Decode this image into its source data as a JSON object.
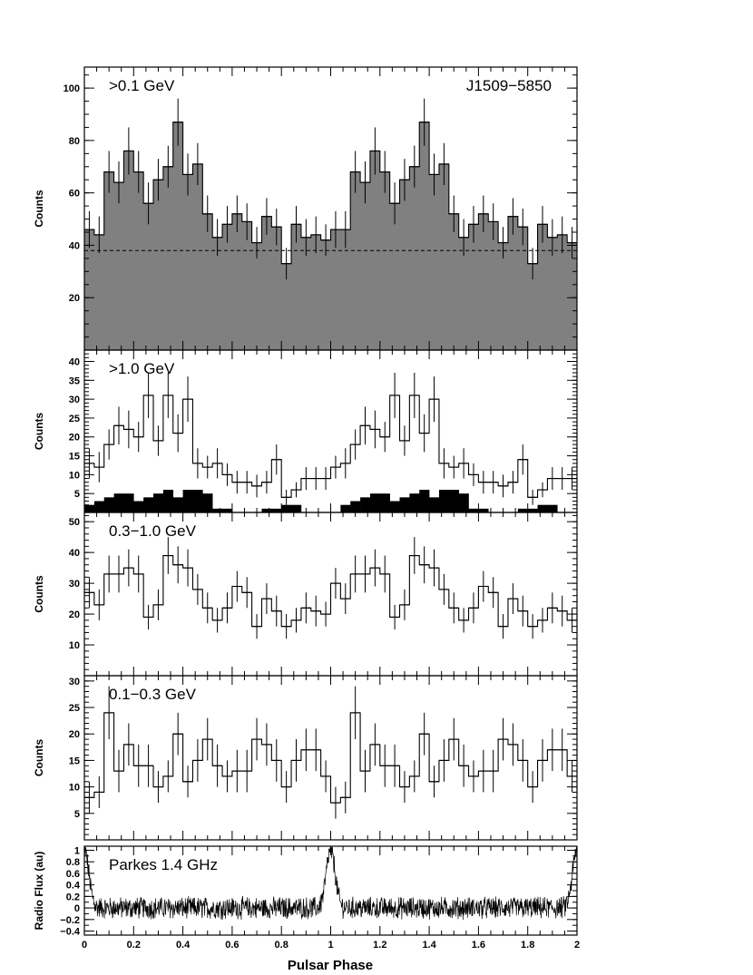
{
  "figure": {
    "xlabel": "Pulsar Phase",
    "x_tick_labels": [
      "0",
      "0.2",
      "0.4",
      "0.6",
      "0.8",
      "1",
      "1.2",
      "1.4",
      "1.6",
      "1.8",
      "2"
    ]
  },
  "chart_data": [
    {
      "type": "bar",
      "panel": "gt01",
      "annotation": ">0.1 GeV",
      "annotation_right": "J1509−5850",
      "ylabel": "Counts",
      "xlim": [
        0,
        2
      ],
      "ylim": [
        0,
        108
      ],
      "y_ticks": [
        20,
        40,
        60,
        80,
        100
      ],
      "y_tick_labels": [
        "20",
        "40",
        "60",
        "80",
        "100"
      ],
      "y_minor_step": 5,
      "bin_width": 0.04,
      "values": [
        46,
        44,
        68,
        64,
        76,
        68,
        56,
        65,
        70,
        87,
        67,
        71,
        52,
        43,
        48,
        52,
        49,
        41,
        51,
        47,
        33,
        48,
        43,
        44,
        42,
        46,
        46,
        68,
        64,
        76,
        68,
        56,
        65,
        70,
        87,
        67,
        71,
        52,
        43,
        48,
        52,
        49,
        41,
        51,
        47,
        33,
        48,
        43,
        44,
        41
      ],
      "errors": [
        7,
        7,
        8,
        8,
        9,
        8,
        8,
        8,
        8,
        9,
        8,
        8,
        7,
        7,
        7,
        7,
        7,
        6,
        7,
        7,
        6,
        7,
        7,
        7,
        6,
        7,
        7,
        8,
        8,
        9,
        8,
        8,
        8,
        8,
        9,
        8,
        8,
        7,
        7,
        7,
        7,
        7,
        6,
        7,
        7,
        6,
        7,
        7,
        7,
        6
      ],
      "background_level": 38,
      "filled": true,
      "fill_color": "#808080"
    },
    {
      "type": "bar",
      "panel": "gt10",
      "annotation": ">1.0 GeV",
      "ylabel": "Counts",
      "xlim": [
        0,
        2
      ],
      "ylim": [
        0,
        43
      ],
      "y_ticks": [
        5,
        10,
        15,
        20,
        25,
        30,
        35,
        40
      ],
      "y_tick_labels": [
        "5",
        "10",
        "15",
        "20",
        "25",
        "30",
        "35",
        "40"
      ],
      "y_minor_step": 1,
      "bin_width": 0.04,
      "values": [
        13,
        12,
        18,
        23,
        22,
        20,
        31,
        19,
        31,
        21,
        30,
        13,
        12,
        13,
        10,
        8,
        8,
        7,
        8,
        14,
        4,
        6,
        9,
        9,
        9,
        12,
        13,
        18,
        23,
        22,
        20,
        31,
        19,
        31,
        21,
        30,
        13,
        12,
        13,
        10,
        8,
        8,
        7,
        8,
        14,
        4,
        6,
        9,
        9,
        9
      ],
      "errors": [
        4,
        4,
        4,
        5,
        5,
        4,
        6,
        4,
        6,
        5,
        6,
        4,
        3,
        4,
        3,
        3,
        3,
        3,
        3,
        4,
        2,
        2,
        3,
        3,
        3,
        3,
        4,
        4,
        5,
        5,
        4,
        6,
        4,
        6,
        5,
        6,
        4,
        3,
        4,
        3,
        3,
        3,
        3,
        3,
        4,
        2,
        2,
        3,
        3,
        3
      ],
      "secondary_values": [
        2,
        3,
        4,
        5,
        5,
        3,
        4,
        5,
        6,
        4,
        6,
        6,
        5,
        1,
        1,
        0,
        0,
        0,
        1,
        1,
        2,
        2,
        0,
        0,
        0,
        0,
        2,
        3,
        4,
        5,
        5,
        3,
        4,
        5,
        6,
        4,
        6,
        6,
        5,
        1,
        1,
        0,
        0,
        0,
        1,
        1,
        2,
        2,
        0,
        0
      ]
    },
    {
      "type": "bar",
      "panel": "mid",
      "annotation": "0.3−1.0 GeV",
      "ylabel": "Counts",
      "xlim": [
        0,
        2
      ],
      "ylim": [
        0,
        53
      ],
      "y_ticks": [
        10,
        20,
        30,
        40,
        50
      ],
      "y_tick_labels": [
        "10",
        "20",
        "30",
        "40",
        "50"
      ],
      "y_minor_step": 2,
      "bin_width": 0.04,
      "values": [
        27,
        23,
        33,
        33,
        35,
        33,
        19,
        23,
        39,
        36,
        35,
        28,
        22,
        18,
        22,
        29,
        27,
        16,
        25,
        21,
        16,
        18,
        22,
        21,
        20,
        30,
        25,
        33,
        33,
        35,
        33,
        19,
        23,
        39,
        36,
        35,
        28,
        22,
        18,
        22,
        29,
        27,
        16,
        25,
        21,
        16,
        18,
        22,
        21,
        18
      ],
      "errors": [
        5,
        5,
        6,
        6,
        6,
        6,
        4,
        5,
        6,
        6,
        6,
        5,
        5,
        4,
        5,
        5,
        5,
        4,
        5,
        5,
        4,
        4,
        5,
        5,
        4,
        5,
        5,
        6,
        6,
        6,
        6,
        4,
        5,
        6,
        6,
        6,
        5,
        5,
        4,
        5,
        5,
        5,
        4,
        5,
        5,
        4,
        4,
        5,
        5,
        4
      ]
    },
    {
      "type": "bar",
      "panel": "low",
      "annotation": "0.1−0.3 GeV",
      "ylabel": "Counts",
      "xlim": [
        0,
        2
      ],
      "ylim": [
        0,
        31
      ],
      "y_ticks": [
        5,
        10,
        15,
        20,
        25,
        30
      ],
      "y_tick_labels": [
        "5",
        "10",
        "15",
        "20",
        "25",
        "30"
      ],
      "y_minor_step": 1,
      "bin_width": 0.04,
      "values": [
        8,
        9,
        24,
        13,
        18,
        14,
        14,
        10,
        12,
        20,
        11,
        15,
        19,
        14,
        12,
        13,
        13,
        19,
        18,
        15,
        10,
        15,
        17,
        17,
        12,
        7,
        8,
        24,
        13,
        18,
        14,
        14,
        10,
        12,
        20,
        11,
        15,
        19,
        14,
        12,
        13,
        13,
        19,
        18,
        15,
        10,
        15,
        17,
        17,
        12
      ],
      "errors": [
        3,
        3,
        5,
        4,
        4,
        4,
        4,
        3,
        3,
        4,
        3,
        4,
        4,
        4,
        3,
        4,
        4,
        4,
        4,
        4,
        3,
        4,
        4,
        4,
        3,
        3,
        3,
        5,
        4,
        4,
        4,
        4,
        3,
        3,
        4,
        3,
        4,
        4,
        4,
        3,
        4,
        4,
        4,
        4,
        4,
        3,
        4,
        4,
        4,
        3
      ]
    },
    {
      "type": "line",
      "panel": "radio",
      "annotation": "Parkes 1.4 GHz",
      "ylabel": "Radio Flux (au)",
      "xlim": [
        0,
        2
      ],
      "ylim": [
        -0.47,
        1.07
      ],
      "y_ticks": [
        -0.4,
        -0.2,
        0,
        0.2,
        0.4,
        0.6,
        0.8,
        1
      ],
      "y_tick_labels": [
        "−0.4",
        "−0.2",
        "0",
        "0.2",
        "0.4",
        "0.6",
        "0.8",
        "1"
      ],
      "y_minor_step": 0.1,
      "peak_phase": 1.0,
      "peak_value": 1.0,
      "peak_width": 0.018,
      "noise_amplitude": 0.17
    }
  ]
}
